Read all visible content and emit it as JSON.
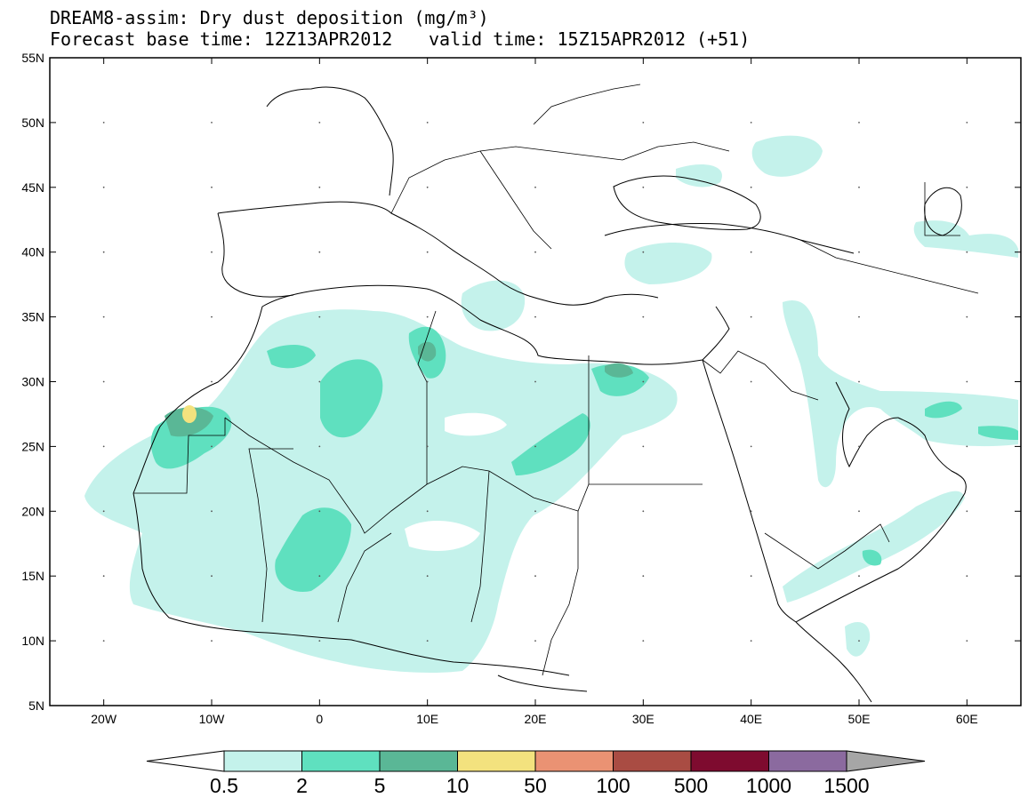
{
  "header": {
    "title": "DREAM8-assim: Dry dust deposition (mg/m³)",
    "forecast_base": "Forecast base time: 12Z13APR2012",
    "valid_time": "valid time: 15Z15APR2012 (+51)"
  },
  "map": {
    "lat_ticks": [
      "55N",
      "50N",
      "45N",
      "40N",
      "35N",
      "30N",
      "25N",
      "20N",
      "15N",
      "10N",
      "5N"
    ],
    "lon_ticks": [
      "20W",
      "10W",
      "0",
      "10E",
      "20E",
      "30E",
      "40E",
      "50E",
      "60E"
    ],
    "lon_range": [
      -25,
      65
    ],
    "lat_range": [
      5,
      55
    ]
  },
  "legend": {
    "levels": [
      "0.5",
      "2",
      "5",
      "10",
      "50",
      "100",
      "500",
      "1000",
      "1500"
    ],
    "colors": [
      "#c4f2eb",
      "#5fe0bf",
      "#5ab796",
      "#f3e27e",
      "#ea9273",
      "#a94c43",
      "#7e0b2f",
      "#8b6a9f",
      "#a6a6a6"
    ]
  }
}
